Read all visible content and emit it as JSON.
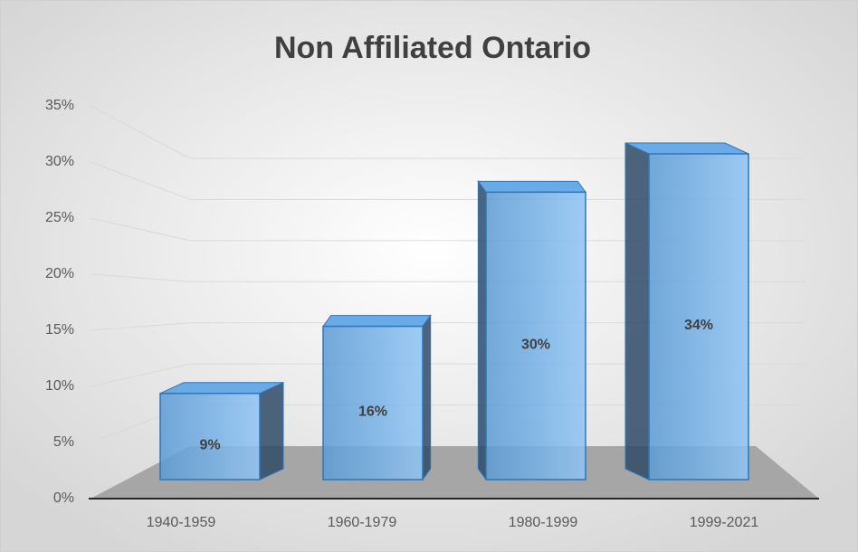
{
  "chart_data": {
    "type": "bar3d",
    "title": "Non Affiliated Ontario",
    "categories": [
      "1940-1959",
      "1960-1979",
      "1980-1999",
      "1999-2021"
    ],
    "values": [
      9,
      16,
      30,
      34
    ],
    "value_labels": [
      "9%",
      "16%",
      "30%",
      "34%"
    ],
    "color": "#5b9bd5",
    "ylim": [
      0,
      35
    ],
    "yticks": [
      {
        "value": 0,
        "label": "0%"
      },
      {
        "value": 5,
        "label": "5%"
      },
      {
        "value": 10,
        "label": "10%"
      },
      {
        "value": 15,
        "label": "15%"
      },
      {
        "value": 20,
        "label": "20%"
      },
      {
        "value": 25,
        "label": "25%"
      },
      {
        "value": 30,
        "label": "30%"
      },
      {
        "value": 35,
        "label": "35%"
      }
    ],
    "grid": true
  }
}
